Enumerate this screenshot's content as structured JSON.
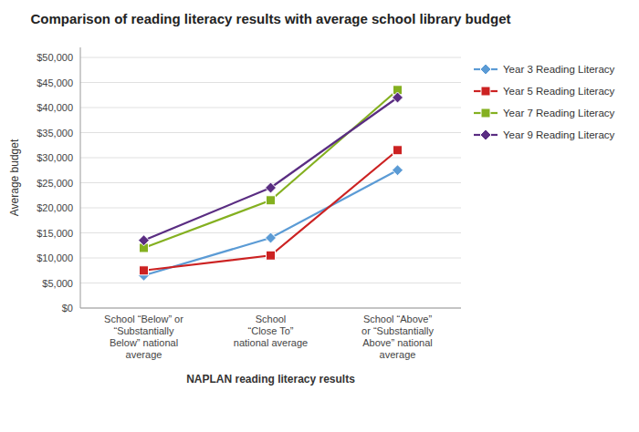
{
  "chart_data": {
    "type": "line",
    "title": "Comparison of reading literacy results with average school library budget",
    "x_label": "NAPLAN reading literacy results",
    "y_label": "Average budget",
    "categories": [
      "School “Below” or\n“Substantially\nBelow” national\naverage",
      "School\n“Close To”\nnational average",
      "School “Above”\nor “Substantially\nAbove” national\naverage"
    ],
    "series": [
      {
        "name": "Year 3 Reading Literacy",
        "color": "#5b9bd5",
        "marker": "diamond",
        "values": [
          6500,
          14000,
          27500
        ]
      },
      {
        "name": "Year 5 Reading Literacy",
        "color": "#cc2222",
        "marker": "square",
        "values": [
          7500,
          10500,
          31500
        ]
      },
      {
        "name": "Year 7 Reading Literacy",
        "color": "#84b020",
        "marker": "square",
        "values": [
          12000,
          21500,
          43500
        ]
      },
      {
        "name": "Year 9 Reading Literacy",
        "color": "#5a2d82",
        "marker": "diamond",
        "values": [
          13500,
          24000,
          42000
        ]
      }
    ],
    "ylim": [
      0,
      52000
    ],
    "yticks": [
      {
        "value": 0,
        "label": "$0"
      },
      {
        "value": 5000,
        "label": "$5,000"
      },
      {
        "value": 10000,
        "label": "$10,000"
      },
      {
        "value": 15000,
        "label": "$15,000"
      },
      {
        "value": 20000,
        "label": "$20,000"
      },
      {
        "value": 25000,
        "label": "$25,000"
      },
      {
        "value": 30000,
        "label": "$30,000"
      },
      {
        "value": 35000,
        "label": "$35,000"
      },
      {
        "value": 40000,
        "label": "$40,000"
      },
      {
        "value": 45000,
        "label": "$45,000"
      },
      {
        "value": 50000,
        "label": "$50,000"
      }
    ],
    "grid": true,
    "legend": "right"
  }
}
